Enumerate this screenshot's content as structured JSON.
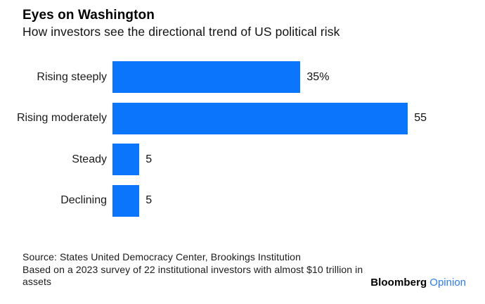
{
  "title": "Eyes on Washington",
  "subtitle": "How investors see the directional trend of US political risk",
  "chart_data": {
    "type": "bar",
    "orientation": "horizontal",
    "categories": [
      "Rising steeply",
      "Rising moderately",
      "Steady",
      "Declining"
    ],
    "values": [
      35,
      55,
      5,
      5
    ],
    "value_labels": [
      "35%",
      "55",
      "5",
      "5"
    ],
    "unit": "percent",
    "xlim": [
      0,
      55
    ],
    "bar_color": "#0b75fb",
    "grid": false,
    "legend": false,
    "axis_lines": false
  },
  "footer": {
    "source_line": "Source: States United Democracy Center, Brookings Institution",
    "note_line1": "Based on a 2023 survey of 22 institutional investors with almost $10 trillion in",
    "note_line2": "assets"
  },
  "branding": {
    "name": "Bloomberg",
    "product": "Opinion",
    "product_color": "#2e7bf2"
  }
}
